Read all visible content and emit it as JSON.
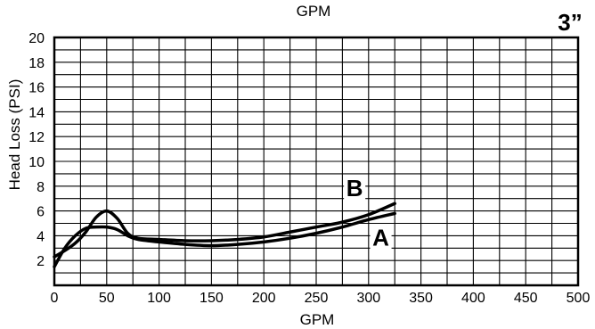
{
  "chart_data": {
    "type": "line",
    "top_label": "GPM",
    "size_label": "3”",
    "xlabel": "GPM",
    "ylabel": "Head Loss (PSI)",
    "xlim": [
      0,
      500
    ],
    "ylim": [
      0,
      20
    ],
    "x_ticks": [
      0,
      50,
      100,
      150,
      200,
      250,
      300,
      350,
      400,
      450,
      500
    ],
    "y_ticks": [
      2,
      4,
      6,
      8,
      10,
      12,
      14,
      16,
      18,
      20
    ],
    "grid": true,
    "series": [
      {
        "name": "A",
        "x": [
          0,
          10,
          20,
          30,
          40,
          50,
          60,
          70,
          80,
          100,
          125,
          150,
          175,
          200,
          225,
          250,
          275,
          300,
          325
        ],
        "values": [
          1.5,
          3.0,
          4.0,
          4.6,
          4.7,
          4.7,
          4.5,
          4.0,
          3.7,
          3.5,
          3.3,
          3.2,
          3.3,
          3.5,
          3.8,
          4.2,
          4.7,
          5.3,
          5.8
        ]
      },
      {
        "name": "B",
        "x": [
          0,
          10,
          20,
          30,
          40,
          50,
          60,
          70,
          80,
          100,
          125,
          150,
          175,
          200,
          225,
          250,
          275,
          300,
          325
        ],
        "values": [
          2.3,
          2.8,
          3.4,
          4.3,
          5.5,
          6.0,
          5.4,
          4.2,
          3.8,
          3.7,
          3.6,
          3.6,
          3.7,
          3.9,
          4.3,
          4.7,
          5.1,
          5.7,
          6.6
        ]
      }
    ],
    "series_labels": [
      {
        "text": "B",
        "at": [
          285,
          7.2
        ]
      },
      {
        "text": "A",
        "at": [
          310,
          3.2
        ]
      }
    ]
  }
}
